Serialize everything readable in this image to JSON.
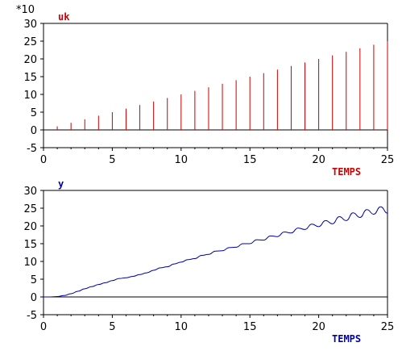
{
  "chart_data": [
    {
      "type": "bar",
      "series_label": "uk",
      "xlabel": "TEMPS",
      "multiplier_label": "*10",
      "color": "#cc0000",
      "xlim": [
        0,
        25
      ],
      "ylim": [
        -5,
        30
      ],
      "x_ticks": [
        0,
        5,
        10,
        15,
        20,
        25
      ],
      "y_ticks": [
        -5,
        0,
        5,
        10,
        15,
        20,
        25,
        30
      ],
      "x": [
        1,
        2,
        3,
        4,
        5,
        6,
        7,
        8,
        9,
        10,
        11,
        12,
        13,
        14,
        15,
        16,
        17,
        18,
        19,
        20,
        21,
        22,
        23,
        24,
        25
      ],
      "values": [
        1,
        2,
        3,
        4,
        5,
        6,
        7,
        8,
        9,
        10,
        11,
        12,
        13,
        14,
        15,
        16,
        17,
        18,
        19,
        20,
        21,
        22,
        23,
        24,
        25
      ]
    },
    {
      "type": "line",
      "series_label": "y",
      "xlabel": "TEMPS",
      "color": "#0000aa",
      "xlim": [
        0,
        25
      ],
      "ylim": [
        -5,
        30
      ],
      "x_ticks": [
        0,
        5,
        10,
        15,
        20,
        25
      ],
      "y_ticks": [
        -5,
        0,
        5,
        10,
        15,
        20,
        25,
        30
      ],
      "x": [
        0,
        0.5,
        1,
        1.5,
        2,
        2.5,
        3,
        3.5,
        4,
        4.5,
        5,
        5.5,
        6,
        6.5,
        7,
        7.5,
        8,
        8.5,
        9,
        9.5,
        10,
        10.5,
        11,
        11.5,
        12,
        12.5,
        13,
        13.5,
        14,
        14.5,
        15,
        15.5,
        16,
        16.5,
        17,
        17.5,
        18,
        18.5,
        19,
        19.5,
        20,
        20.5,
        21,
        21.5,
        22,
        22.5,
        23,
        23.5,
        24,
        24.5,
        25
      ],
      "y": [
        0,
        0,
        0.1,
        0.4,
        0.9,
        1.6,
        2.3,
        2.9,
        3.5,
        4.0,
        4.6,
        5.2,
        5.4,
        5.8,
        6.3,
        6.8,
        7.5,
        8.2,
        8.5,
        9.3,
        9.8,
        10.5,
        10.8,
        11.7,
        12.0,
        12.9,
        13.0,
        13.9,
        14.0,
        15.0,
        15.0,
        16.1,
        16.0,
        17.2,
        17.0,
        18.3,
        18.0,
        19.4,
        19.0,
        20.5,
        19.8,
        21.5,
        20.6,
        22.6,
        21.5,
        23.7,
        22.4,
        24.6,
        23.3,
        25.4,
        23.6
      ]
    }
  ]
}
